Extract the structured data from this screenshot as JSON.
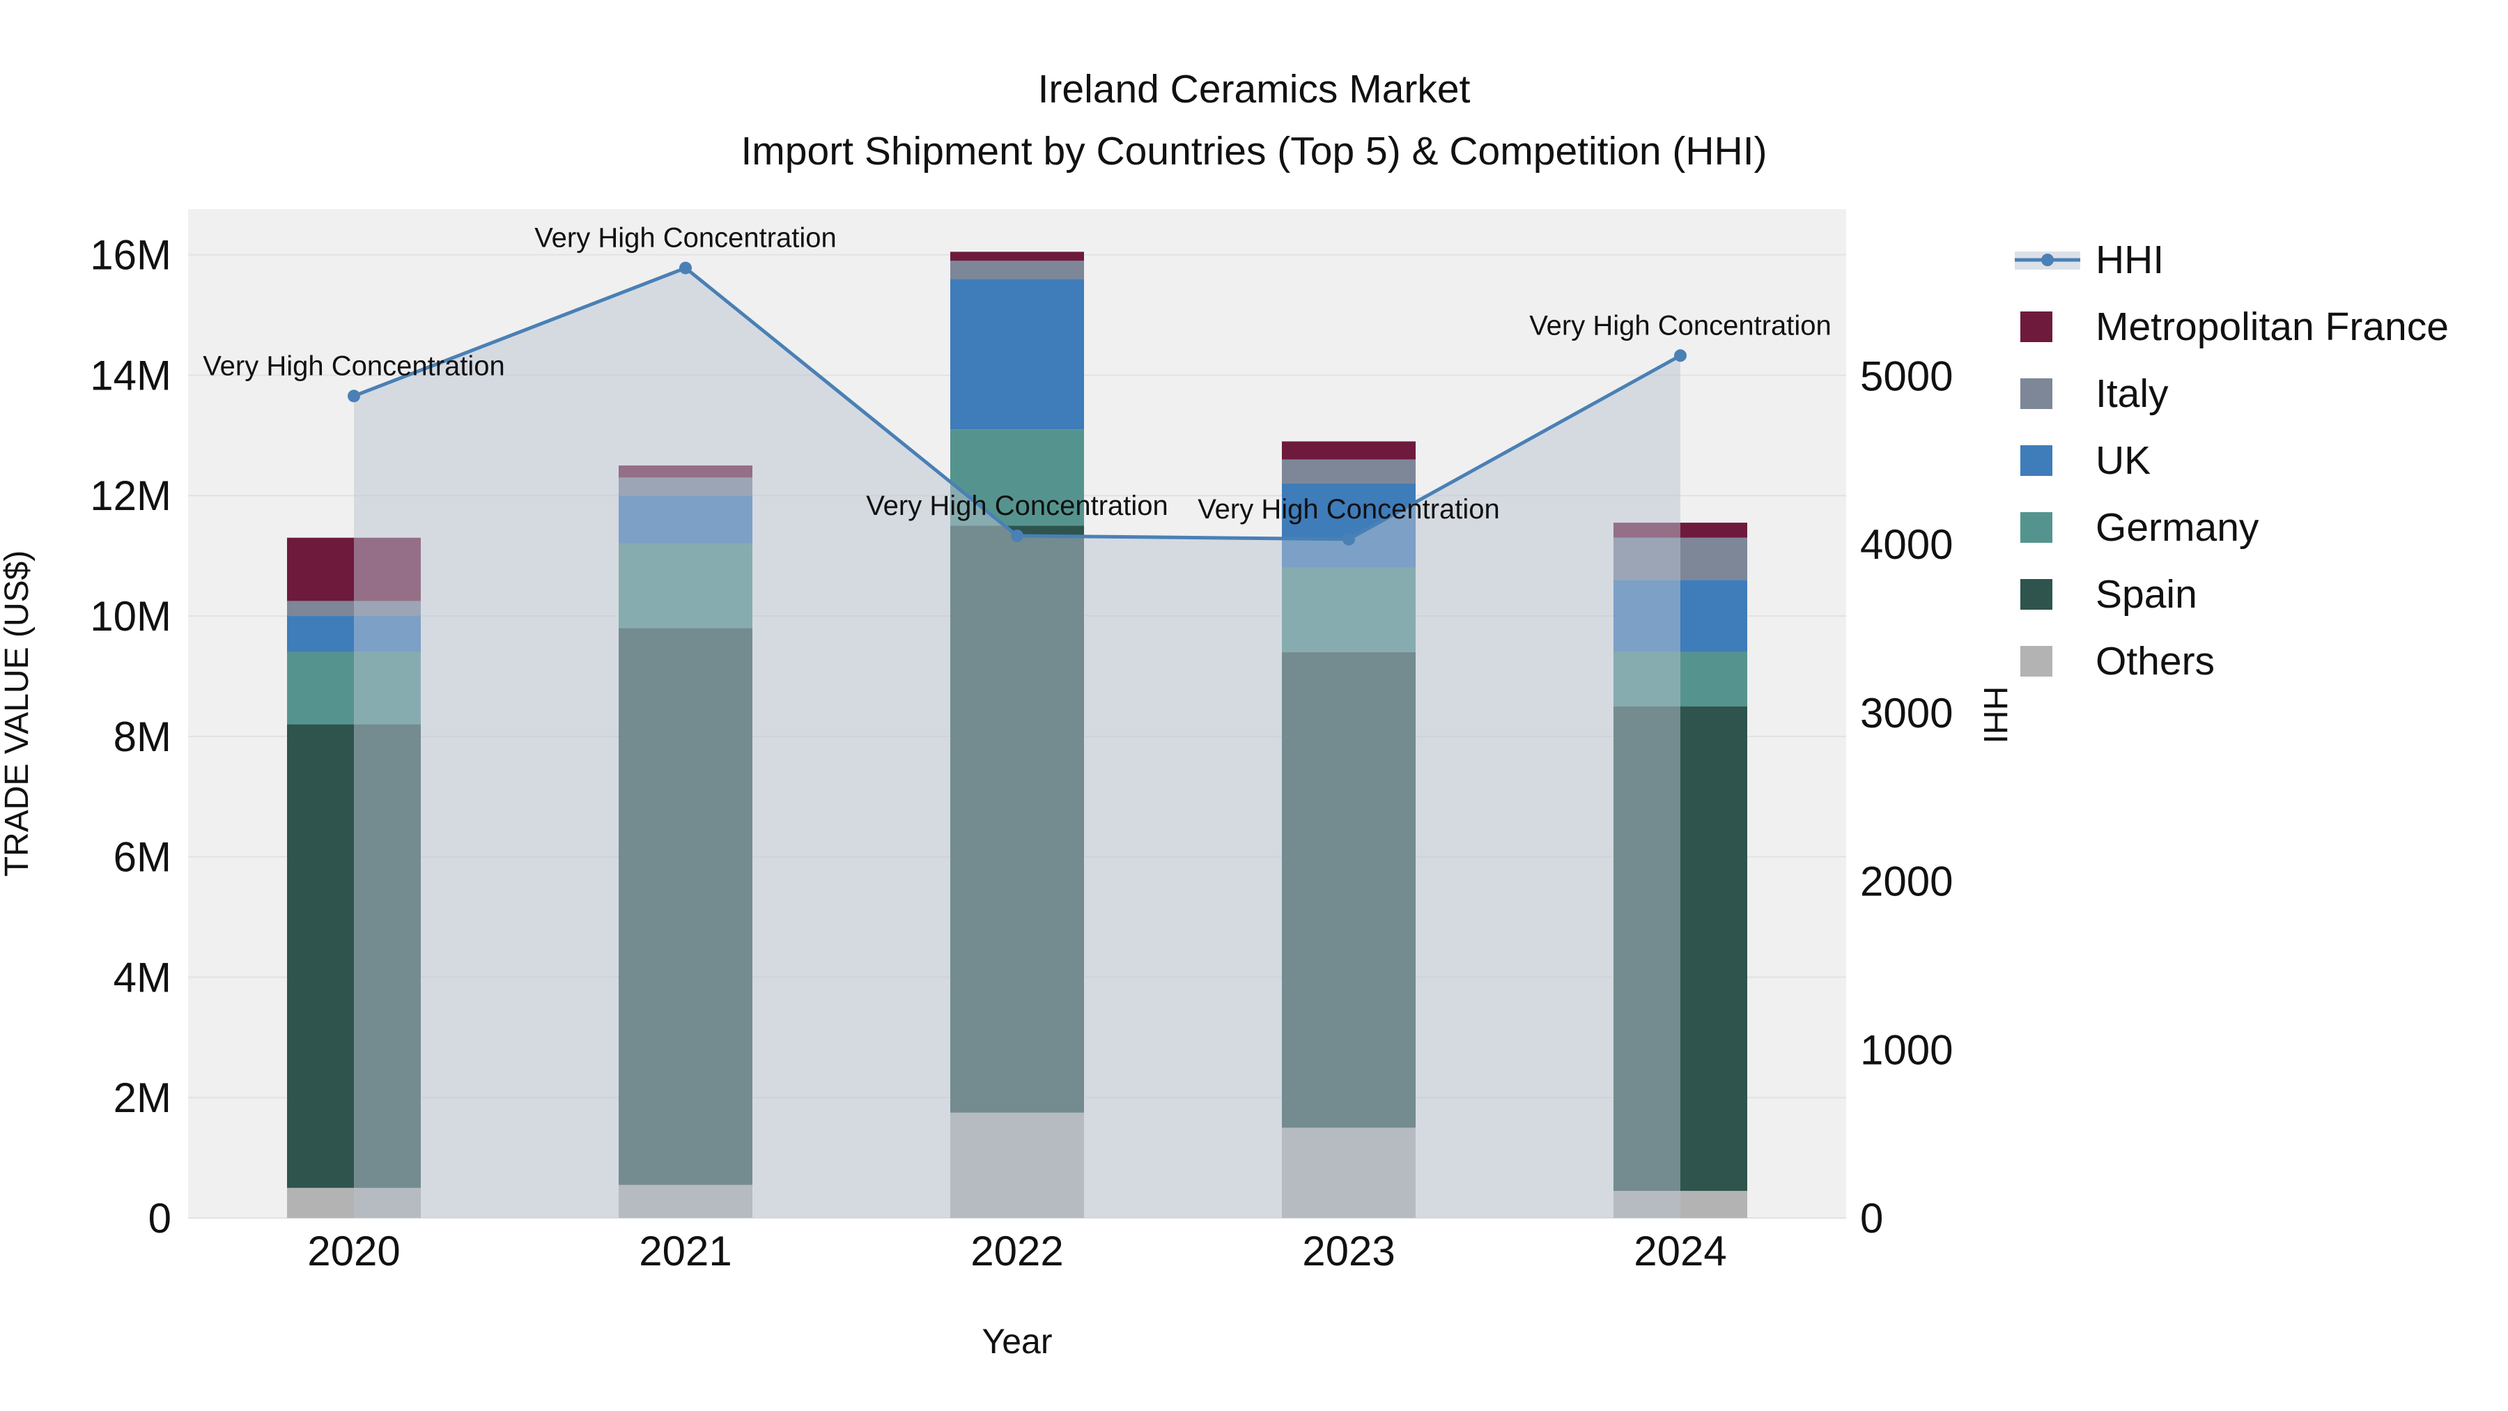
{
  "title": {
    "line1": "Ireland Ceramics Market",
    "line2": "Import Shipment by Countries (Top 5) & Competition (HHI)"
  },
  "chart_data": {
    "type": "bar",
    "subtype": "stacked-bars-with-line-area-overlay",
    "title": "Ireland Ceramics Market — Import Shipment by Countries (Top 5) & Competition (HHI)",
    "xlabel": "Year",
    "ylabel_left": "TRADE VALUE (US$)",
    "ylabel_right": "HHI",
    "categories": [
      "2020",
      "2021",
      "2022",
      "2023",
      "2024"
    ],
    "bar_unit": "million US$",
    "y_left_range": [
      0,
      16.76
    ],
    "y_right_range": [
      0,
      5990
    ],
    "y_left_ticks": [
      {
        "v": 0,
        "label": "0"
      },
      {
        "v": 2,
        "label": "2M"
      },
      {
        "v": 4,
        "label": "4M"
      },
      {
        "v": 6,
        "label": "6M"
      },
      {
        "v": 8,
        "label": "8M"
      },
      {
        "v": 10,
        "label": "10M"
      },
      {
        "v": 12,
        "label": "12M"
      },
      {
        "v": 14,
        "label": "14M"
      },
      {
        "v": 16,
        "label": "16M"
      }
    ],
    "y_right_ticks": [
      {
        "v": 0,
        "label": "0"
      },
      {
        "v": 1000,
        "label": "1000"
      },
      {
        "v": 2000,
        "label": "2000"
      },
      {
        "v": 3000,
        "label": "3000"
      },
      {
        "v": 4000,
        "label": "4000"
      },
      {
        "v": 5000,
        "label": "5000"
      }
    ],
    "series": [
      {
        "name": "Others",
        "color": "#b3b3b3",
        "values": [
          0.5,
          0.55,
          1.75,
          1.5,
          0.45
        ]
      },
      {
        "name": "Spain",
        "color": "#2e544d",
        "values": [
          7.7,
          9.25,
          9.75,
          7.9,
          8.05
        ]
      },
      {
        "name": "Germany",
        "color": "#55948e",
        "values": [
          1.2,
          1.4,
          1.6,
          1.4,
          0.9
        ]
      },
      {
        "name": "UK",
        "color": "#3f7cba",
        "values": [
          0.6,
          0.8,
          2.5,
          1.4,
          1.2
        ]
      },
      {
        "name": "Italy",
        "color": "#7d8798",
        "values": [
          0.25,
          0.3,
          0.3,
          0.4,
          0.7
        ]
      },
      {
        "name": "Metropolitan France",
        "color": "#6e1a3d",
        "values": [
          1.05,
          0.2,
          0.15,
          0.3,
          0.25
        ]
      }
    ],
    "stack_totals": [
      11.3,
      12.5,
      16.05,
      12.9,
      11.55
    ],
    "hhi_line": {
      "name": "HHI",
      "values": [
        4880,
        5640,
        4050,
        4030,
        5120
      ],
      "annotation_text": "Very High Concentration",
      "line_color": "#4a80b5",
      "area_color": "rgba(185,195,210,0.5)"
    },
    "legend": {
      "position": "right",
      "items": [
        "HHI",
        "Metropolitan France",
        "Italy",
        "UK",
        "Germany",
        "Spain",
        "Others"
      ]
    },
    "plot_background": "#f0f0f0",
    "gridline_color": "#e2e2e2"
  }
}
